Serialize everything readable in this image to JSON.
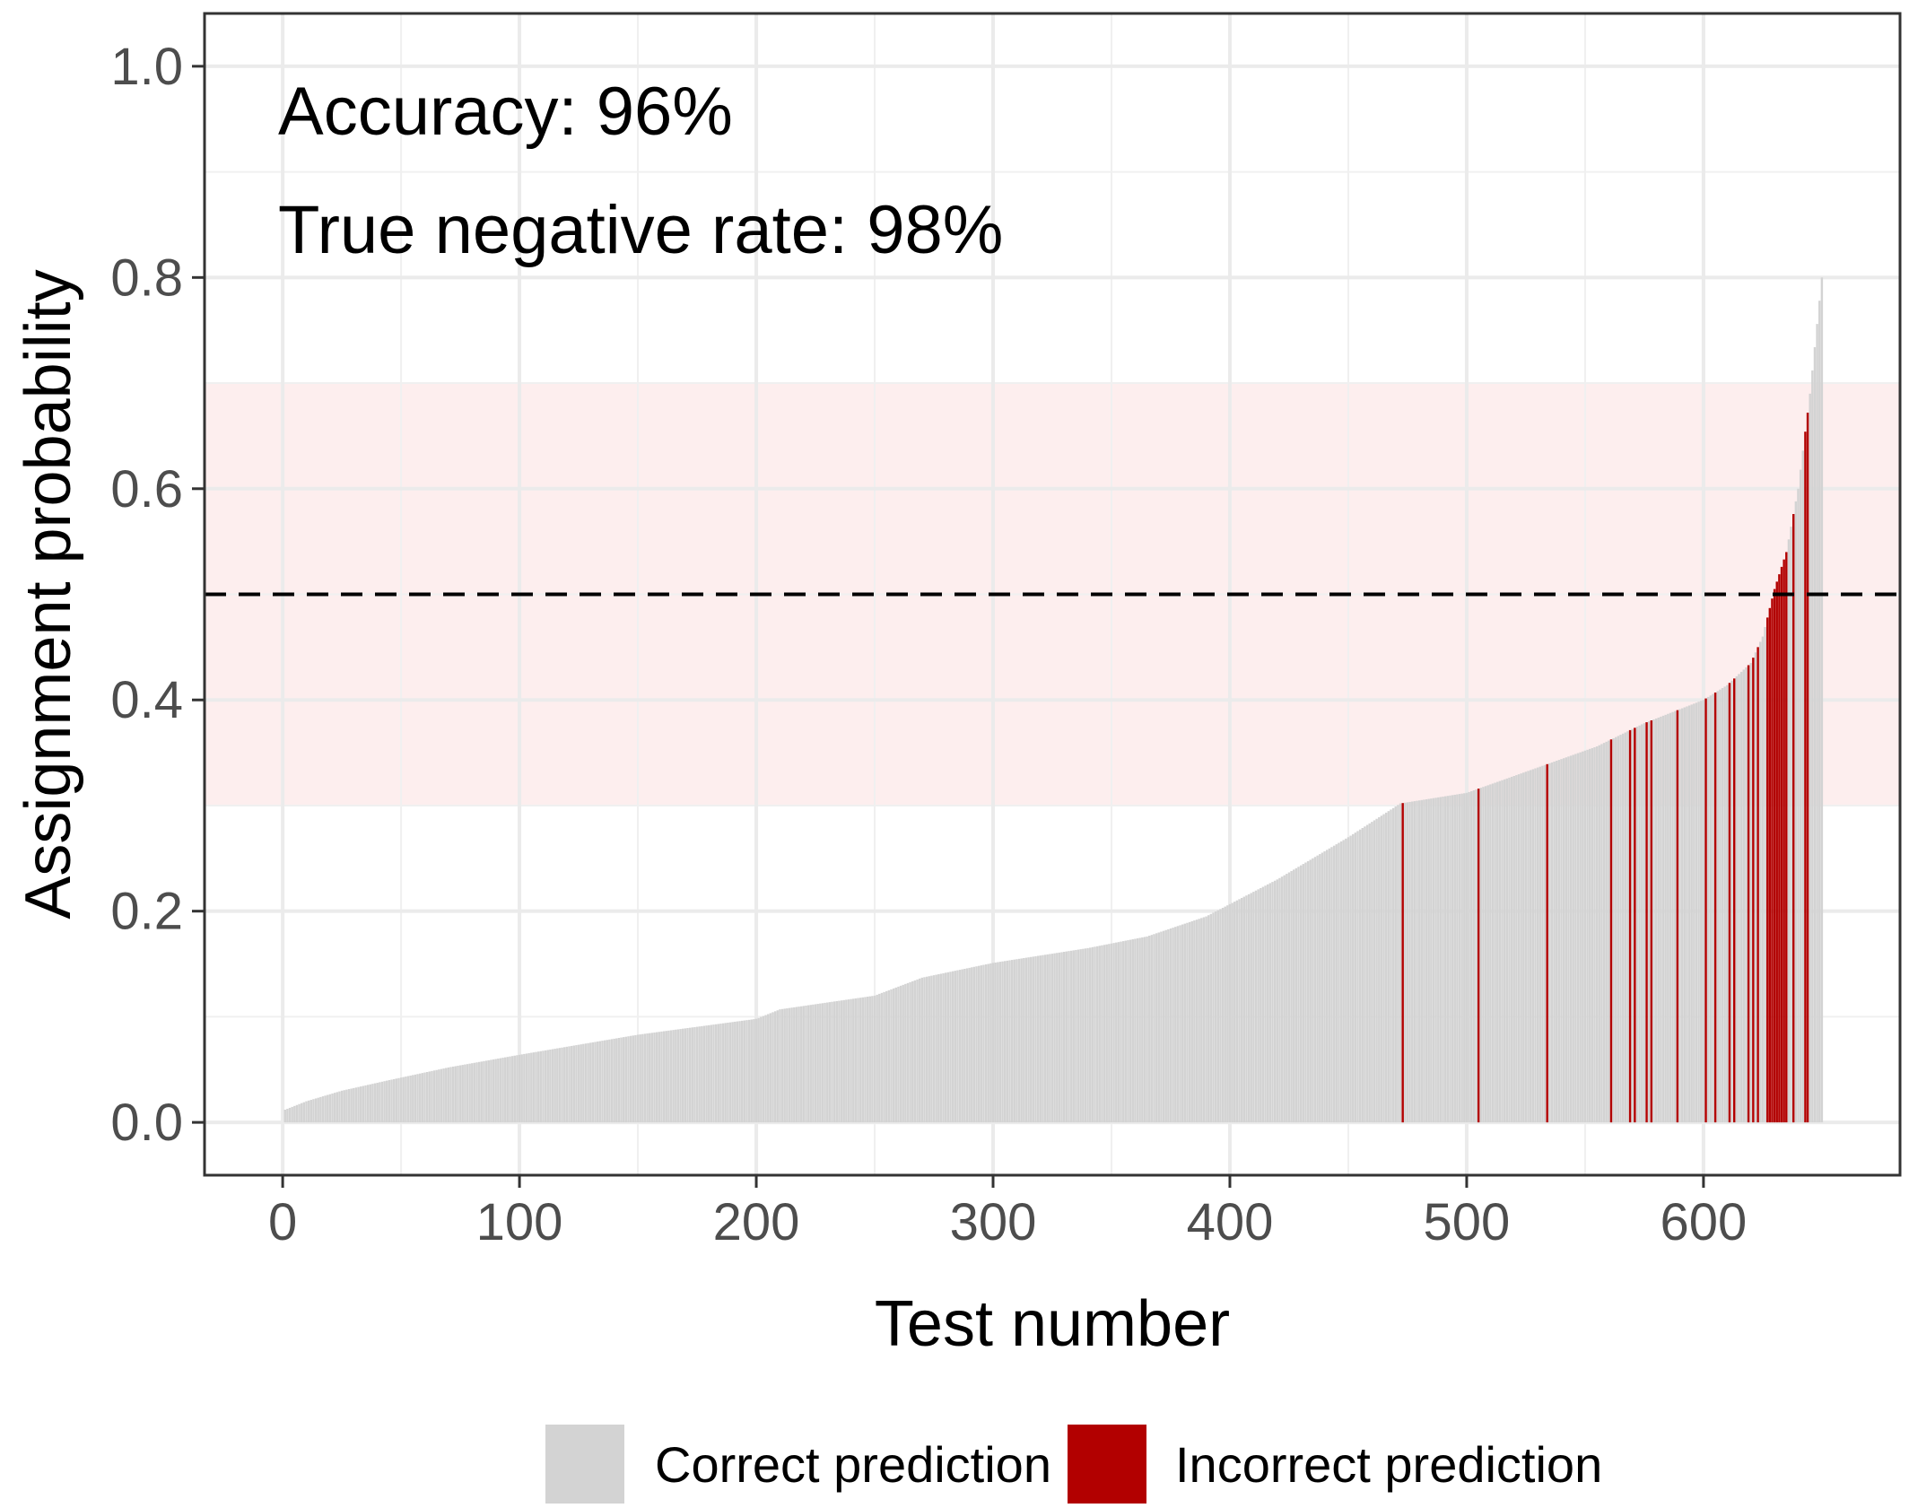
{
  "chart_data": {
    "type": "bar",
    "title": "",
    "xlabel": "Test number",
    "ylabel": "Assignment probability",
    "xlim": [
      -33,
      683
    ],
    "ylim": [
      -0.05,
      1.05
    ],
    "x_ticks": [
      0,
      100,
      200,
      300,
      400,
      500,
      600
    ],
    "y_ticks": [
      0.0,
      0.2,
      0.4,
      0.6,
      0.8,
      1.0
    ],
    "x_tick_labels": [
      "0",
      "100",
      "200",
      "300",
      "400",
      "500",
      "600"
    ],
    "y_tick_labels": [
      "0.0",
      "0.2",
      "0.4",
      "0.6",
      "0.8",
      "1.0"
    ],
    "grid": true,
    "n_tests": 650,
    "reference_line": {
      "y": 0.5,
      "style": "dashed",
      "color": "#000000"
    },
    "shaded_band": {
      "ymin": 0.3,
      "ymax": 0.7,
      "color": "#fdeeee"
    },
    "curve_knots": [
      [
        1,
        0.012
      ],
      [
        10,
        0.02
      ],
      [
        25,
        0.03
      ],
      [
        45,
        0.04
      ],
      [
        70,
        0.052
      ],
      [
        100,
        0.064
      ],
      [
        150,
        0.083
      ],
      [
        200,
        0.098
      ],
      [
        210,
        0.107
      ],
      [
        250,
        0.12
      ],
      [
        270,
        0.137
      ],
      [
        300,
        0.151
      ],
      [
        340,
        0.165
      ],
      [
        365,
        0.176
      ],
      [
        390,
        0.195
      ],
      [
        420,
        0.23
      ],
      [
        450,
        0.27
      ],
      [
        472,
        0.302
      ],
      [
        500,
        0.312
      ],
      [
        530,
        0.336
      ],
      [
        555,
        0.356
      ],
      [
        575,
        0.378
      ],
      [
        600,
        0.4
      ],
      [
        610,
        0.414
      ],
      [
        620,
        0.435
      ],
      [
        625,
        0.46
      ],
      [
        630,
        0.505
      ],
      [
        635,
        0.54
      ],
      [
        640,
        0.6
      ],
      [
        645,
        0.69
      ],
      [
        650,
        0.8
      ]
    ],
    "incorrect_tests": [
      473,
      505,
      534,
      561,
      569,
      571,
      576,
      578,
      589,
      601,
      605,
      611,
      613,
      619,
      621,
      623,
      627,
      628,
      629,
      630,
      631,
      632,
      633,
      634,
      635,
      638,
      643,
      644
    ],
    "series": [
      {
        "name": "Correct prediction",
        "color": "#d3d3d3"
      },
      {
        "name": "Incorrect prediction",
        "color": "#b20000"
      }
    ],
    "annotations": [
      "Accuracy: 96%",
      "True negative rate: 98%"
    ],
    "legend_position": "bottom"
  }
}
